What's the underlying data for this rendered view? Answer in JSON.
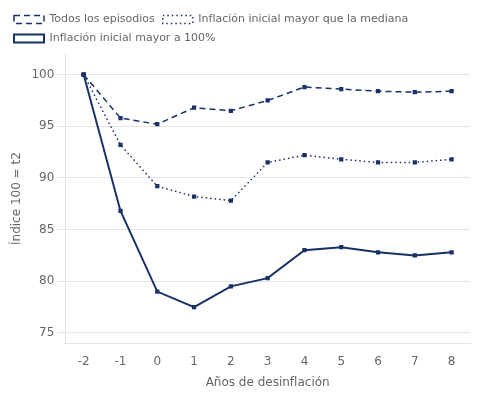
{
  "chart_data": {
    "type": "line",
    "x": [
      -2,
      -1,
      0,
      1,
      2,
      3,
      4,
      5,
      6,
      7,
      8
    ],
    "series": [
      {
        "name": "Todos los episodios",
        "color": "#1a3068",
        "line_style": "dashed",
        "marker": "square",
        "values": [
          100,
          95.8,
          95.2,
          96.8,
          96.5,
          97.5,
          98.8,
          98.6,
          98.4,
          98.3,
          98.4
        ]
      },
      {
        "name": "Inflación inicial mayor que la mediana",
        "color": "#1a3068",
        "line_style": "dotted",
        "marker": "square",
        "values": [
          100,
          93.2,
          89.2,
          88.2,
          87.8,
          91.5,
          92.2,
          91.8,
          91.5,
          91.5,
          91.8
        ]
      },
      {
        "name": "Inflación inicial mayor a 100%",
        "color": "#1a3068",
        "line_style": "solid",
        "marker": "square",
        "values": [
          100,
          86.8,
          79.0,
          77.5,
          79.5,
          80.3,
          83.0,
          83.3,
          82.8,
          82.5,
          82.8
        ]
      }
    ],
    "x_label": "Años de desinflación",
    "y_label": "Índice 100 = t2",
    "xlim": [
      -2.5,
      8.5
    ],
    "xticks": [
      -2,
      -1,
      0,
      1,
      2,
      3,
      4,
      5,
      6,
      7,
      8
    ],
    "ylim": [
      74,
      102
    ],
    "yticks": [
      75,
      80,
      85,
      90,
      95,
      100
    ],
    "grid": "y",
    "legend": "upper left"
  }
}
